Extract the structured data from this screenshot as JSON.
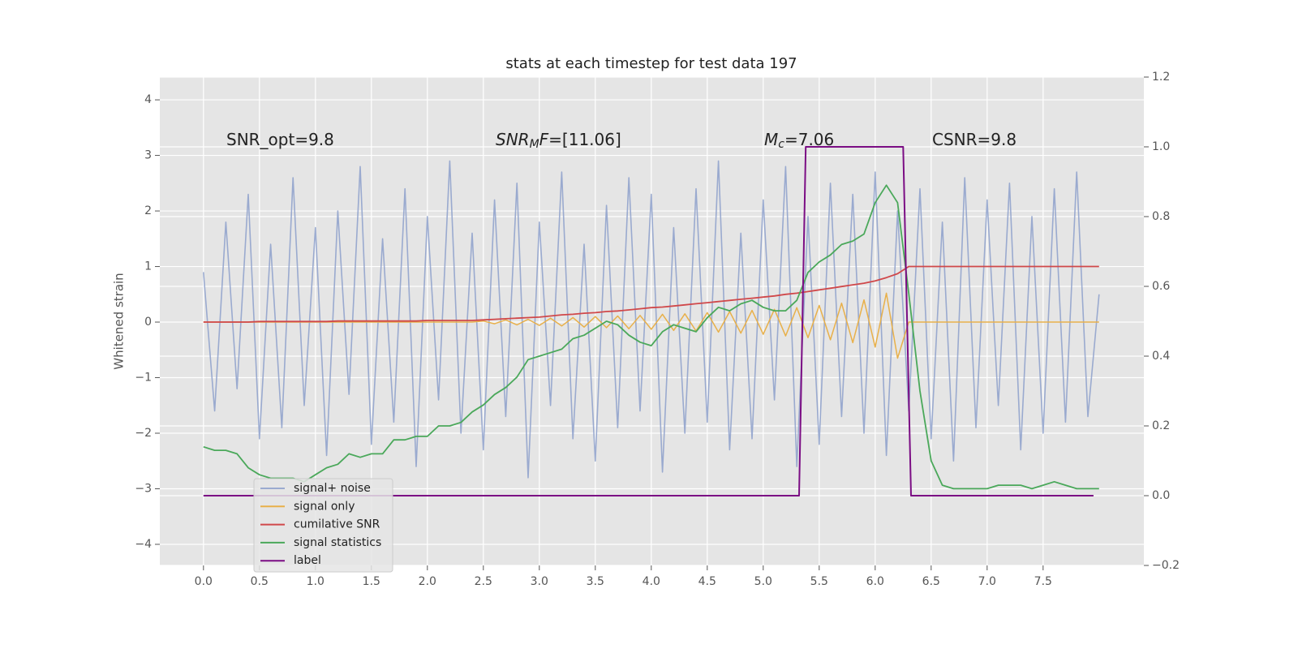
{
  "chart_data": {
    "type": "line",
    "title": "stats at each timestep for test data 197",
    "ylabel": "Whitened strain",
    "x": [
      0.0,
      0.1,
      0.2,
      0.3,
      0.4,
      0.5,
      0.6,
      0.7,
      0.8,
      0.9,
      1.0,
      1.1,
      1.2,
      1.3,
      1.4,
      1.5,
      1.6,
      1.7,
      1.8,
      1.9,
      2.0,
      2.1,
      2.2,
      2.3,
      2.4,
      2.5,
      2.6,
      2.7,
      2.8,
      2.9,
      3.0,
      3.1,
      3.2,
      3.3,
      3.4,
      3.5,
      3.6,
      3.7,
      3.8,
      3.9,
      4.0,
      4.1,
      4.2,
      4.3,
      4.4,
      4.5,
      4.6,
      4.7,
      4.8,
      4.9,
      5.0,
      5.1,
      5.2,
      5.3,
      5.4,
      5.5,
      5.6,
      5.7,
      5.8,
      5.9,
      6.0,
      6.1,
      6.2,
      6.3,
      6.4,
      6.5,
      6.6,
      6.7,
      6.8,
      6.9,
      7.0,
      7.1,
      7.2,
      7.3,
      7.4,
      7.5,
      7.6,
      7.7,
      7.8,
      7.9,
      8.0
    ],
    "series": [
      {
        "name": "signal+ noise",
        "color": "#8da0cb",
        "axis": "y",
        "values": [
          0.9,
          -1.6,
          1.8,
          -1.2,
          2.3,
          -2.1,
          1.4,
          -1.9,
          2.6,
          -1.5,
          1.7,
          -2.4,
          2.0,
          -1.3,
          2.8,
          -2.2,
          1.5,
          -1.8,
          2.4,
          -2.6,
          1.9,
          -1.4,
          2.9,
          -2.0,
          1.6,
          -2.3,
          2.2,
          -1.7,
          2.5,
          -2.8,
          1.8,
          -1.5,
          2.7,
          -2.1,
          1.4,
          -2.5,
          2.1,
          -1.9,
          2.6,
          -1.6,
          2.3,
          -2.7,
          1.7,
          -2.0,
          2.4,
          -1.8,
          2.9,
          -2.3,
          1.6,
          -2.1,
          2.2,
          -1.4,
          2.8,
          -2.6,
          1.9,
          -2.2,
          2.5,
          -1.7,
          2.3,
          -2.0,
          2.7,
          -2.4,
          2.0,
          -1.6,
          2.4,
          -2.1,
          1.8,
          -2.5,
          2.6,
          -1.9,
          2.2,
          -1.5,
          2.5,
          -2.3,
          1.9,
          -2.0,
          2.4,
          -1.8,
          2.7,
          -1.7,
          0.5
        ]
      },
      {
        "name": "signal only",
        "color": "#e8b04a",
        "axis": "y",
        "values": [
          0,
          0,
          0,
          0,
          0,
          0,
          0,
          0,
          0,
          0,
          0,
          0,
          0,
          0,
          0,
          0,
          0,
          0,
          0,
          0,
          0,
          0,
          0,
          0,
          0,
          0.02,
          -0.03,
          0.04,
          -0.05,
          0.05,
          -0.06,
          0.07,
          -0.07,
          0.08,
          -0.09,
          0.1,
          -0.1,
          0.11,
          -0.12,
          0.12,
          -0.13,
          0.14,
          -0.15,
          0.15,
          -0.16,
          0.17,
          -0.18,
          0.19,
          -0.2,
          0.21,
          -0.22,
          0.23,
          -0.25,
          0.26,
          -0.28,
          0.3,
          -0.32,
          0.34,
          -0.37,
          0.4,
          -0.45,
          0.52,
          -0.65,
          0,
          0,
          0,
          0,
          0,
          0,
          0,
          0,
          0,
          0,
          0,
          0,
          0,
          0,
          0,
          0,
          0,
          0
        ]
      },
      {
        "name": "cumilative SNR",
        "color": "#d0484a",
        "axis": "y",
        "values": [
          0,
          0,
          0,
          0,
          0,
          0.01,
          0.01,
          0.01,
          0.01,
          0.01,
          0.01,
          0.01,
          0.02,
          0.02,
          0.02,
          0.02,
          0.02,
          0.02,
          0.02,
          0.02,
          0.03,
          0.03,
          0.03,
          0.03,
          0.03,
          0.04,
          0.05,
          0.06,
          0.07,
          0.08,
          0.09,
          0.11,
          0.13,
          0.14,
          0.16,
          0.17,
          0.19,
          0.2,
          0.22,
          0.24,
          0.26,
          0.27,
          0.29,
          0.31,
          0.33,
          0.35,
          0.37,
          0.39,
          0.41,
          0.43,
          0.45,
          0.47,
          0.5,
          0.52,
          0.55,
          0.58,
          0.61,
          0.64,
          0.67,
          0.7,
          0.74,
          0.8,
          0.87,
          1.0,
          1.0,
          1.0,
          1.0,
          1.0,
          1.0,
          1.0,
          1.0,
          1.0,
          1.0,
          1.0,
          1.0,
          1.0,
          1.0,
          1.0,
          1.0,
          1.0,
          1.0
        ]
      },
      {
        "name": "signal statistics",
        "color": "#4aa85a",
        "axis": "y2",
        "values": [
          0.14,
          0.13,
          0.13,
          0.12,
          0.08,
          0.06,
          0.05,
          0.05,
          0.05,
          0.04,
          0.06,
          0.08,
          0.09,
          0.12,
          0.11,
          0.12,
          0.12,
          0.16,
          0.16,
          0.17,
          0.17,
          0.2,
          0.2,
          0.21,
          0.24,
          0.26,
          0.29,
          0.31,
          0.34,
          0.39,
          0.4,
          0.41,
          0.42,
          0.45,
          0.46,
          0.48,
          0.5,
          0.49,
          0.46,
          0.44,
          0.43,
          0.47,
          0.49,
          0.48,
          0.47,
          0.51,
          0.54,
          0.53,
          0.55,
          0.56,
          0.54,
          0.53,
          0.53,
          0.56,
          0.64,
          0.67,
          0.69,
          0.72,
          0.73,
          0.75,
          0.84,
          0.89,
          0.84,
          0.58,
          0.3,
          0.1,
          0.03,
          0.02,
          0.02,
          0.02,
          0.02,
          0.03,
          0.03,
          0.03,
          0.02,
          0.03,
          0.04,
          0.03,
          0.02,
          0.02,
          0.02
        ]
      },
      {
        "name": "label",
        "color": "#7b0d84",
        "axis": "y2",
        "x": [
          0.0,
          5.32,
          5.38,
          6.25,
          6.32,
          7.95
        ],
        "values": [
          0,
          0,
          1,
          1,
          0,
          0
        ]
      }
    ],
    "annotations": [
      {
        "parts": [
          "SNR_opt=9.8"
        ]
      },
      {
        "parts": [
          "SNR",
          "M",
          "F",
          "=[11.06]"
        ]
      },
      {
        "parts": [
          "M",
          "c",
          "=7.06"
        ]
      },
      {
        "parts": [
          "CSNR=9.8"
        ]
      }
    ],
    "xlim": [
      -0.39,
      8.4
    ],
    "xticks": [
      {
        "value": 0,
        "label": "0.0"
      },
      0.5,
      {
        "value": 1,
        "label": "1.0"
      },
      1.5,
      {
        "value": 2,
        "label": "2.0"
      },
      2.5,
      {
        "value": 3,
        "label": "3.0"
      },
      3.5,
      {
        "value": 4,
        "label": "4.0"
      },
      4.5,
      {
        "value": 5,
        "label": "5.0"
      },
      5.5,
      {
        "value": 6,
        "label": "6.0"
      },
      6.5,
      {
        "value": 7,
        "label": "7.0"
      },
      7.5
    ],
    "ylim": [
      -4.38,
      4.41
    ],
    "yticks": [
      {
        "value": -4,
        "label": "−4"
      },
      {
        "value": -3,
        "label": "−3"
      },
      {
        "value": -2,
        "label": "−2"
      },
      {
        "value": -1,
        "label": "−1"
      },
      0,
      1,
      2,
      3,
      4
    ],
    "y2lim": [
      -0.2,
      1.2
    ],
    "y2ticks": [
      {
        "value": -0.2,
        "label": "−0.2"
      },
      {
        "value": 0,
        "label": "0.0"
      },
      0.2,
      0.4,
      0.6,
      0.8,
      {
        "value": 1,
        "label": "1.0"
      },
      1.2
    ],
    "grid": true,
    "legend": "lower left"
  }
}
